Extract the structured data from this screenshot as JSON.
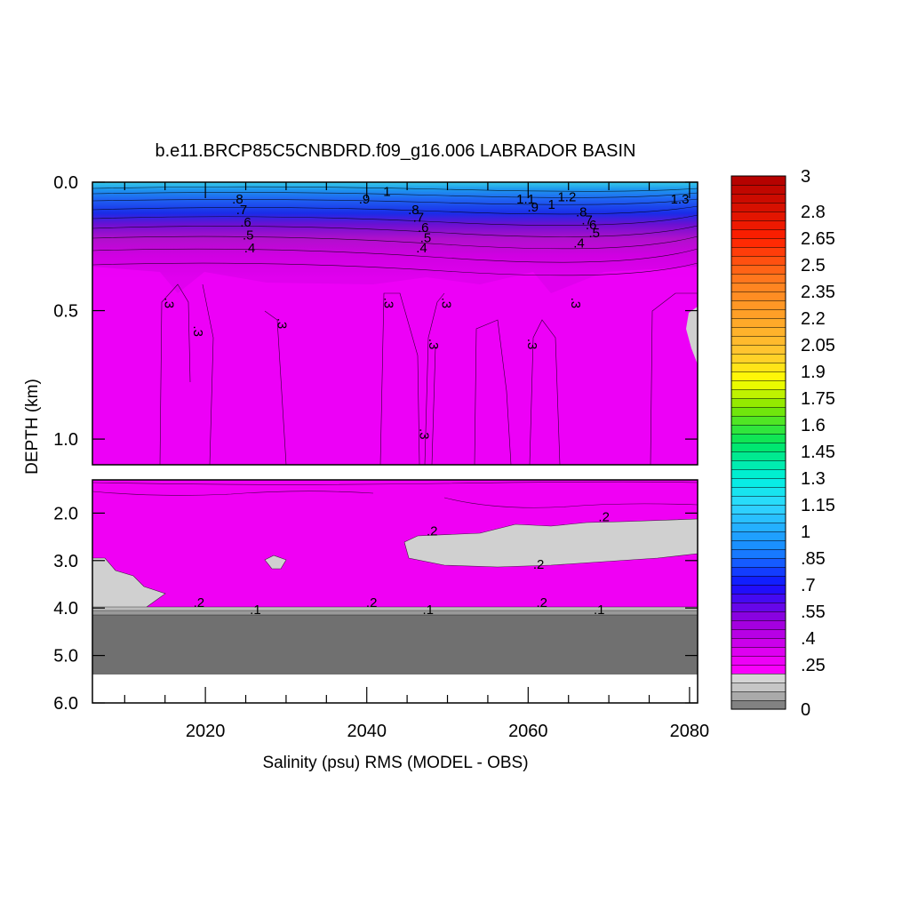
{
  "chart_data": {
    "type": "heatmap",
    "title": "b.e11.BRCP85C5CNBDRD.f09_g16.006 LABRADOR BASIN",
    "xlabel": "Salinity (psu) RMS (MODEL - OBS)",
    "ylabel": "DEPTH (km)",
    "x_range": [
      2006,
      2081
    ],
    "x_ticks": [
      "2020",
      "2040",
      "2060",
      "2080"
    ],
    "panels": [
      {
        "name": "upper",
        "ylim": [
          0.0,
          1.1
        ],
        "y_ticks": [
          "0.0",
          "0.5",
          "1.0"
        ]
      },
      {
        "name": "lower",
        "ylim": [
          1.3,
          6.0
        ],
        "y_ticks": [
          "2.0",
          "3.0",
          "4.0",
          "5.0",
          "6.0"
        ]
      }
    ],
    "colorbar": {
      "min": 0,
      "max": 3,
      "labels": [
        "3",
        "2.8",
        "2.65",
        "2.5",
        "2.35",
        "2.2",
        "2.05",
        "1.9",
        "1.75",
        "1.6",
        "1.45",
        "1.3",
        "1.15",
        "1",
        ".85",
        ".7",
        ".55",
        ".4",
        ".25",
        "0"
      ]
    },
    "contour_labels": [
      {
        "text": ".8",
        "x": 2024.0,
        "y": 0.07
      },
      {
        "text": ".7",
        "x": 2024.5,
        "y": 0.11
      },
      {
        "text": ".6",
        "x": 2025.0,
        "y": 0.16
      },
      {
        "text": ".5",
        "x": 2025.3,
        "y": 0.21
      },
      {
        "text": ".4",
        "x": 2025.5,
        "y": 0.26
      },
      {
        "text": ".9",
        "x": 2039.7,
        "y": 0.07
      },
      {
        "text": "1",
        "x": 2042.5,
        "y": 0.04
      },
      {
        "text": ".8",
        "x": 2045.8,
        "y": 0.11
      },
      {
        "text": ".7",
        "x": 2046.4,
        "y": 0.14
      },
      {
        "text": ".6",
        "x": 2047.0,
        "y": 0.18
      },
      {
        "text": ".5",
        "x": 2047.3,
        "y": 0.22
      },
      {
        "text": ".4",
        "x": 2046.8,
        "y": 0.26
      },
      {
        "text": "1.1",
        "x": 2059.7,
        "y": 0.07
      },
      {
        "text": ".9",
        "x": 2060.6,
        "y": 0.1
      },
      {
        "text": "1",
        "x": 2062.9,
        "y": 0.09
      },
      {
        "text": "1.2",
        "x": 2064.8,
        "y": 0.06
      },
      {
        "text": ".8",
        "x": 2066.6,
        "y": 0.12
      },
      {
        "text": ".7",
        "x": 2067.3,
        "y": 0.15
      },
      {
        "text": ".6",
        "x": 2067.8,
        "y": 0.17
      },
      {
        "text": ".5",
        "x": 2068.2,
        "y": 0.2
      },
      {
        "text": ".4",
        "x": 2066.3,
        "y": 0.24
      },
      {
        "text": "1.3",
        "x": 2078.8,
        "y": 0.07
      },
      {
        "text": ".3",
        "x": 2015.4,
        "y": 0.47,
        "rot": 90
      },
      {
        "text": ".3",
        "x": 2019.0,
        "y": 0.58,
        "rot": 90
      },
      {
        "text": ".3",
        "x": 2029.4,
        "y": 0.55,
        "rot": 90
      },
      {
        "text": ".3",
        "x": 2042.6,
        "y": 0.47,
        "rot": 90
      },
      {
        "text": ".3",
        "x": 2049.8,
        "y": 0.47,
        "rot": 90
      },
      {
        "text": ".3",
        "x": 2048.2,
        "y": 0.63,
        "rot": 90
      },
      {
        "text": ".3",
        "x": 2047.0,
        "y": 0.98,
        "rot": 90
      },
      {
        "text": ".3",
        "x": 2060.4,
        "y": 0.63,
        "rot": 90
      },
      {
        "text": ".3",
        "x": 2065.8,
        "y": 0.47,
        "rot": 90
      },
      {
        "text": ".2",
        "x": 2048.1,
        "y": 2.4
      },
      {
        "text": ".2",
        "x": 2069.4,
        "y": 2.1
      },
      {
        "text": ".2",
        "x": 2061.3,
        "y": 3.1
      },
      {
        "text": ".2",
        "x": 2019.2,
        "y": 3.9
      },
      {
        "text": ".1",
        "x": 2026.2,
        "y": 4.05
      },
      {
        "text": ".2",
        "x": 2040.6,
        "y": 3.9
      },
      {
        "text": ".1",
        "x": 2047.6,
        "y": 4.05
      },
      {
        "text": ".2",
        "x": 2061.7,
        "y": 3.9
      },
      {
        "text": ".1",
        "x": 2068.8,
        "y": 4.05
      }
    ]
  }
}
